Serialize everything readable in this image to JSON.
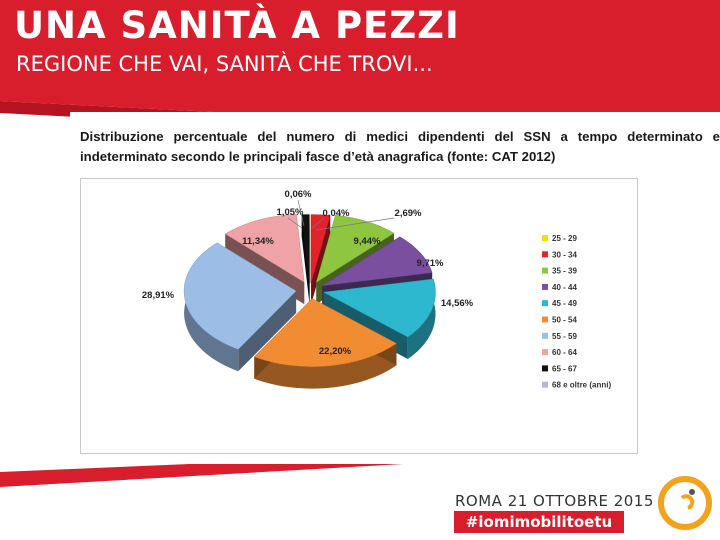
{
  "header": {
    "title": "UNA SANITÀ A PEZZI",
    "subtitle": "REGIONE CHE VAI, SANITÀ CHE TROVI..."
  },
  "description": "Distribuzione percentuale del numero di medici  dipendenti del SSN a tempo determinato e indeterminato secondo le principali fasce d’età anagrafica (fonte: CAT 2012)",
  "footer": {
    "date": "ROMA 21 OTTOBRE 2015",
    "hashtag": "#iomimobilitoetu"
  },
  "colors": {
    "brand_red": "#d81e2c",
    "dark_red": "#a3121c"
  },
  "chart_data": {
    "type": "pie",
    "title": "",
    "categories": [
      "25 - 29",
      "30 - 34",
      "35 - 39",
      "40 - 44",
      "45 - 49",
      "50 - 54",
      "55 - 59",
      "60 - 64",
      "65 - 67",
      "68 e oltre (anni)"
    ],
    "values": [
      0.04,
      2.69,
      9.44,
      9.71,
      14.56,
      22.2,
      28.91,
      11.34,
      1.05,
      0.06
    ],
    "labels": [
      "0,04%",
      "2,69%",
      "9,44%",
      "9,71%",
      "14,56%",
      "22,20%",
      "28,91%",
      "11,34%",
      "1,05%",
      "0,06%"
    ],
    "colors": [
      "#f2e000",
      "#e5222c",
      "#8fc63f",
      "#7a4fa0",
      "#2db8cf",
      "#f28c33",
      "#9bbde6",
      "#f0a3a6",
      "#111111",
      "#b8b8d4"
    ],
    "legend": "right"
  }
}
